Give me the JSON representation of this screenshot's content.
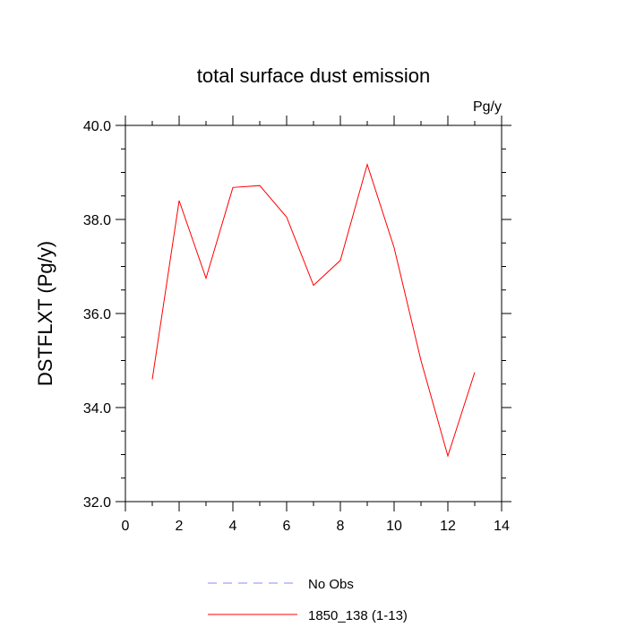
{
  "chart_data": {
    "type": "line",
    "title": "total surface dust emission",
    "units": "Pg/y",
    "xlabel": "",
    "ylabel": "DSTFLXT  (Pg/y)",
    "xlim": [
      0,
      14
    ],
    "ylim": [
      32.0,
      40.0
    ],
    "x_ticks": [
      0,
      2,
      4,
      6,
      8,
      10,
      12,
      14
    ],
    "x_tick_labels": [
      "0",
      "2",
      "4",
      "6",
      "8",
      "10",
      "12",
      "14"
    ],
    "y_ticks": [
      32.0,
      34.0,
      36.0,
      38.0,
      40.0
    ],
    "y_tick_labels": [
      "32.0",
      "34.0",
      "36.0",
      "38.0",
      "40.0"
    ],
    "grid": false,
    "legend_position": "bottom-center",
    "series": [
      {
        "name": "No Obs",
        "color": "#8888ff",
        "line_style": "dashed",
        "x": [],
        "values": []
      },
      {
        "name": "1850_138 (1-13)",
        "color": "#ff0000",
        "line_style": "solid",
        "x": [
          1,
          2,
          3,
          4,
          5,
          6,
          7,
          8,
          9,
          10,
          11,
          12,
          13
        ],
        "values": [
          34.6,
          38.4,
          36.75,
          38.68,
          38.72,
          38.05,
          36.6,
          37.13,
          39.17,
          37.4,
          35.0,
          32.97,
          34.75
        ]
      }
    ]
  }
}
